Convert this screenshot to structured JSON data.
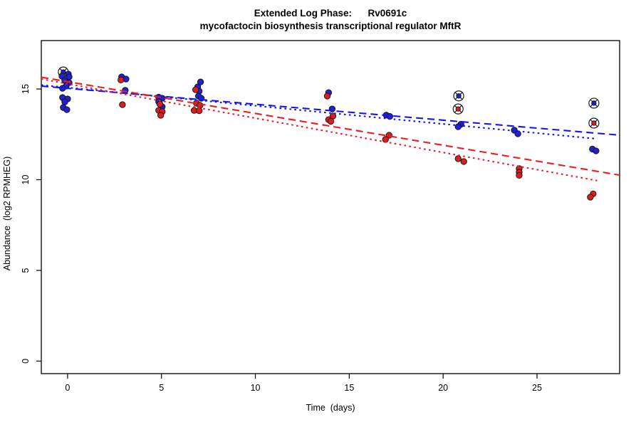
{
  "chart_data": {
    "type": "scatter",
    "title": "Extended Log Phase:      Rv0691c",
    "subtitle": "mycofactocin biosynthesis transcriptional regulator MftR",
    "xlabel": "Time  (days)",
    "ylabel": "Abundance  (log2 RPMHEG)",
    "xlim": [
      -1.4,
      29.4
    ],
    "ylim": [
      -0.69,
      17.67
    ],
    "x_ticks": [
      0,
      5,
      10,
      15,
      20,
      25
    ],
    "y_ticks": [
      0,
      5,
      10,
      15
    ],
    "grid": false,
    "legend": "none",
    "colors": {
      "blue_points": "#2121cd",
      "red_points": "#d81f1f",
      "blue_line": "#1414ee",
      "red_line": "#ee1c1c",
      "point_outline": "#111111",
      "flag_marker": "#1a1a1a"
    },
    "series": [
      {
        "name": "blue-replicates",
        "color_key": "blue_points",
        "marker": "dot",
        "points": [
          [
            0.04,
            15.82
          ],
          [
            -0.3,
            15.71
          ],
          [
            0.08,
            15.67
          ],
          [
            -0.15,
            15.47
          ],
          [
            0.08,
            15.35
          ],
          [
            -0.08,
            15.16
          ],
          [
            -0.27,
            15.04
          ],
          [
            -0.27,
            14.53
          ],
          [
            0.0,
            14.45
          ],
          [
            -0.15,
            14.29
          ],
          [
            -0.23,
            13.98
          ],
          [
            -0.04,
            13.86
          ],
          [
            2.88,
            15.67
          ],
          [
            3.11,
            15.55
          ],
          [
            3.07,
            14.93
          ],
          [
            4.85,
            14.55
          ],
          [
            5.04,
            14.49
          ],
          [
            4.85,
            14.3
          ],
          [
            5.04,
            14.02
          ],
          [
            7.08,
            15.39
          ],
          [
            6.93,
            15.12
          ],
          [
            7.01,
            14.88
          ],
          [
            6.97,
            14.61
          ],
          [
            7.12,
            14.49
          ],
          [
            13.9,
            14.8
          ],
          [
            14.09,
            13.9
          ],
          [
            16.97,
            13.56
          ],
          [
            17.16,
            13.49
          ],
          [
            20.95,
            13.06
          ],
          [
            20.8,
            12.92
          ],
          [
            23.79,
            12.73
          ],
          [
            23.98,
            12.53
          ],
          [
            27.95,
            11.69
          ],
          [
            28.14,
            11.59
          ]
        ]
      },
      {
        "name": "red-replicates",
        "color_key": "red_points",
        "marker": "dot",
        "points": [
          [
            2.84,
            15.5
          ],
          [
            2.92,
            14.14
          ],
          [
            4.92,
            14.16
          ],
          [
            4.85,
            13.82
          ],
          [
            5.04,
            13.75
          ],
          [
            4.96,
            13.55
          ],
          [
            6.82,
            14.96
          ],
          [
            6.86,
            14.22
          ],
          [
            7.05,
            14.1
          ],
          [
            6.74,
            13.82
          ],
          [
            7.01,
            13.8
          ],
          [
            13.83,
            14.61
          ],
          [
            14.13,
            13.51
          ],
          [
            13.9,
            13.31
          ],
          [
            14.02,
            13.22
          ],
          [
            17.12,
            12.45
          ],
          [
            16.93,
            12.22
          ],
          [
            20.8,
            11.16
          ],
          [
            21.1,
            11.0
          ],
          [
            24.05,
            10.61
          ],
          [
            24.05,
            10.41
          ],
          [
            24.05,
            10.24
          ],
          [
            27.99,
            9.22
          ],
          [
            27.84,
            9.04
          ]
        ]
      },
      {
        "name": "blue-flagged-outliers",
        "color_key": "blue_points",
        "marker": "circle-x",
        "points": [
          [
            -0.23,
            15.94
          ],
          [
            20.83,
            14.62
          ],
          [
            28.03,
            14.22
          ]
        ]
      },
      {
        "name": "red-flagged-outliers",
        "color_key": "red_points",
        "marker": "circle-x",
        "points": [
          [
            20.8,
            13.9
          ],
          [
            28.03,
            13.12
          ]
        ]
      }
    ],
    "trend_lines": [
      {
        "name": "blue-fit-dashed",
        "color_key": "blue_line",
        "dash": "long",
        "x": [
          -1.4,
          29.36
        ],
        "y": [
          15.16,
          12.46
        ]
      },
      {
        "name": "blue-fit-dotted",
        "color_key": "blue_line",
        "dash": "short",
        "x": [
          -1.4,
          28.2
        ],
        "y": [
          15.22,
          12.25
        ]
      },
      {
        "name": "red-fit-dashed",
        "color_key": "red_line",
        "dash": "long",
        "x": [
          -1.4,
          29.36
        ],
        "y": [
          15.65,
          10.26
        ]
      },
      {
        "name": "red-fit-dotted",
        "color_key": "red_line",
        "dash": "short",
        "x": [
          -1.4,
          28.2
        ],
        "y": [
          15.55,
          9.95
        ]
      }
    ]
  }
}
